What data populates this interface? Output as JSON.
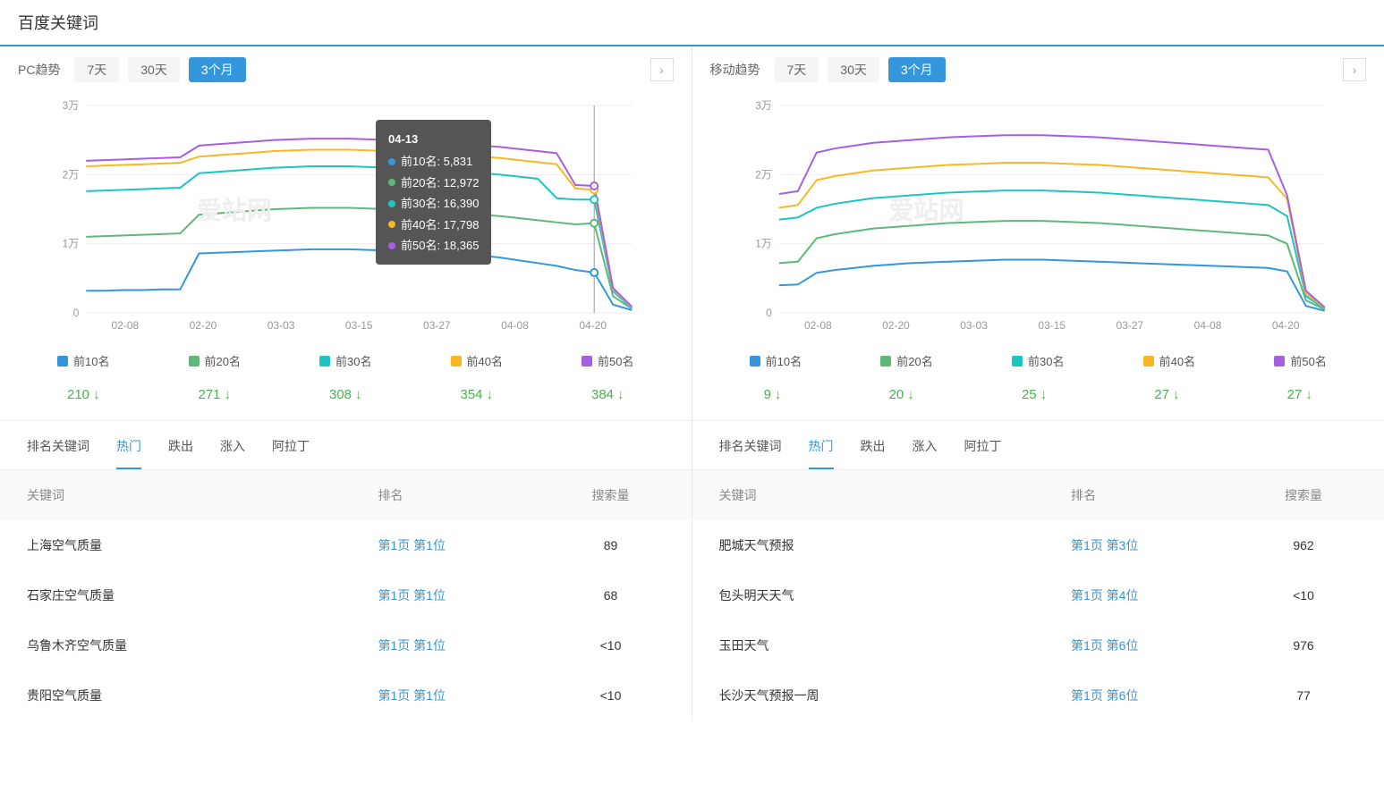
{
  "title": "百度关键词",
  "colors": {
    "accent": "#3497db",
    "green_delta": "#4bb04f",
    "grid": "#eeeeee",
    "axis_text": "#999999",
    "series": {
      "r10": "#3497db",
      "r20": "#5fb878",
      "r30": "#1cc4c4",
      "r40": "#f7b824",
      "r50": "#a65fe0"
    }
  },
  "watermark": "爱站网",
  "ranges": [
    "7天",
    "30天",
    "3个月"
  ],
  "pc": {
    "label": "PC趋势",
    "active_range": 2,
    "chart": {
      "type": "line",
      "ylim": [
        0,
        30000
      ],
      "yticks": [
        0,
        10000,
        20000,
        30000
      ],
      "ytick_labels": [
        "0",
        "1万",
        "2万",
        "3万"
      ],
      "xticks": [
        "02-08",
        "02-20",
        "03-03",
        "03-15",
        "03-27",
        "04-08",
        "04-20"
      ],
      "series": [
        {
          "name": "前10名",
          "color_key": "r10",
          "points": [
            3200,
            3200,
            3300,
            3300,
            3400,
            3400,
            8600,
            8700,
            8800,
            8900,
            9000,
            9100,
            9200,
            9200,
            9200,
            9100,
            9000,
            8900,
            8800,
            8700,
            8500,
            8300,
            8000,
            7600,
            7200,
            6800,
            6200,
            5831,
            1200,
            400
          ]
        },
        {
          "name": "前20名",
          "color_key": "r20",
          "points": [
            11000,
            11100,
            11200,
            11300,
            11400,
            11500,
            14200,
            14400,
            14600,
            14800,
            15000,
            15100,
            15200,
            15200,
            15200,
            15100,
            15000,
            14900,
            14800,
            14600,
            14400,
            14200,
            14000,
            13700,
            13400,
            13100,
            12800,
            12972,
            2400,
            600
          ]
        },
        {
          "name": "前30名",
          "color_key": "r30",
          "points": [
            17600,
            17700,
            17800,
            17900,
            18000,
            18100,
            20200,
            20400,
            20600,
            20800,
            21000,
            21100,
            21200,
            21200,
            21200,
            21100,
            21000,
            20900,
            20800,
            20600,
            20400,
            20200,
            20000,
            19700,
            19400,
            16600,
            16390,
            16390,
            3100,
            700
          ]
        },
        {
          "name": "前40名",
          "color_key": "r40",
          "points": [
            21200,
            21300,
            21400,
            21500,
            21600,
            21700,
            22600,
            22800,
            23000,
            23200,
            23400,
            23500,
            23600,
            23600,
            23600,
            23500,
            23400,
            23300,
            23200,
            23000,
            22800,
            22600,
            22400,
            22100,
            21800,
            21500,
            18000,
            17798,
            3400,
            800
          ]
        },
        {
          "name": "前50名",
          "color_key": "r50",
          "points": [
            22000,
            22100,
            22200,
            22300,
            22400,
            22500,
            24200,
            24400,
            24600,
            24800,
            25000,
            25100,
            25200,
            25200,
            25200,
            25100,
            25000,
            24900,
            24800,
            24600,
            24400,
            24200,
            24000,
            23700,
            23400,
            23100,
            18500,
            18365,
            3600,
            900
          ]
        }
      ],
      "tooltip": {
        "x_index": 27,
        "date": "04-13",
        "rows": [
          {
            "label": "前10名",
            "value": "5,831",
            "color_key": "r10"
          },
          {
            "label": "前20名",
            "value": "12,972",
            "color_key": "r20"
          },
          {
            "label": "前30名",
            "value": "16,390",
            "color_key": "r30"
          },
          {
            "label": "前40名",
            "value": "17,798",
            "color_key": "r40"
          },
          {
            "label": "前50名",
            "value": "18,365",
            "color_key": "r50"
          }
        ]
      }
    },
    "legend": [
      "前10名",
      "前20名",
      "前30名",
      "前40名",
      "前50名"
    ],
    "deltas": [
      "210",
      "271",
      "308",
      "354",
      "384"
    ],
    "tabs": [
      "排名关键词",
      "热门",
      "跌出",
      "涨入",
      "阿拉丁"
    ],
    "active_tab": 1,
    "table": {
      "headers": [
        "关键词",
        "排名",
        "搜索量"
      ],
      "rows": [
        {
          "kw": "上海空气质量",
          "rank": "第1页 第1位",
          "vol": "89"
        },
        {
          "kw": "石家庄空气质量",
          "rank": "第1页 第1位",
          "vol": "68"
        },
        {
          "kw": "乌鲁木齐空气质量",
          "rank": "第1页 第1位",
          "vol": "<10"
        },
        {
          "kw": "贵阳空气质量",
          "rank": "第1页 第1位",
          "vol": "<10"
        }
      ]
    }
  },
  "mobile": {
    "label": "移动趋势",
    "active_range": 2,
    "chart": {
      "type": "line",
      "ylim": [
        0,
        30000
      ],
      "yticks": [
        0,
        10000,
        20000,
        30000
      ],
      "ytick_labels": [
        "0",
        "1万",
        "2万",
        "3万"
      ],
      "xticks": [
        "02-08",
        "02-20",
        "03-03",
        "03-15",
        "03-27",
        "04-08",
        "04-20"
      ],
      "series": [
        {
          "name": "前10名",
          "color_key": "r10",
          "points": [
            4000,
            4100,
            5800,
            6200,
            6500,
            6800,
            7000,
            7200,
            7300,
            7400,
            7500,
            7600,
            7700,
            7700,
            7700,
            7600,
            7500,
            7400,
            7300,
            7200,
            7100,
            7000,
            6900,
            6800,
            6700,
            6600,
            6500,
            6000,
            1000,
            300
          ]
        },
        {
          "name": "前20名",
          "color_key": "r20",
          "points": [
            7200,
            7400,
            10800,
            11400,
            11800,
            12200,
            12400,
            12600,
            12800,
            13000,
            13100,
            13200,
            13300,
            13300,
            13300,
            13200,
            13100,
            13000,
            12800,
            12600,
            12400,
            12200,
            12000,
            11800,
            11600,
            11400,
            11200,
            10000,
            1800,
            500
          ]
        },
        {
          "name": "前30名",
          "color_key": "r30",
          "points": [
            13500,
            13800,
            15200,
            15800,
            16200,
            16600,
            16800,
            17000,
            17200,
            17400,
            17500,
            17600,
            17700,
            17700,
            17700,
            17600,
            17500,
            17400,
            17200,
            17000,
            16800,
            16600,
            16400,
            16200,
            16000,
            15800,
            15600,
            14000,
            2400,
            600
          ]
        },
        {
          "name": "前40名",
          "color_key": "r40",
          "points": [
            15200,
            15600,
            19200,
            19800,
            20200,
            20600,
            20800,
            21000,
            21200,
            21400,
            21500,
            21600,
            21700,
            21700,
            21700,
            21600,
            21500,
            21400,
            21200,
            21000,
            20800,
            20600,
            20400,
            20200,
            20000,
            19800,
            19600,
            16500,
            2800,
            700
          ]
        },
        {
          "name": "前50名",
          "color_key": "r50",
          "points": [
            17200,
            17600,
            23200,
            23800,
            24200,
            24600,
            24800,
            25000,
            25200,
            25400,
            25500,
            25600,
            25700,
            25700,
            25700,
            25600,
            25500,
            25400,
            25200,
            25000,
            24800,
            24600,
            24400,
            24200,
            24000,
            23800,
            23600,
            17000,
            3200,
            800
          ]
        }
      ]
    },
    "legend": [
      "前10名",
      "前20名",
      "前30名",
      "前40名",
      "前50名"
    ],
    "deltas": [
      "9",
      "20",
      "25",
      "27",
      "27"
    ],
    "tabs": [
      "排名关键词",
      "热门",
      "跌出",
      "涨入",
      "阿拉丁"
    ],
    "active_tab": 1,
    "table": {
      "headers": [
        "关键词",
        "排名",
        "搜索量"
      ],
      "rows": [
        {
          "kw": "肥城天气预报",
          "rank": "第1页 第3位",
          "vol": "962"
        },
        {
          "kw": "包头明天天气",
          "rank": "第1页 第4位",
          "vol": "<10"
        },
        {
          "kw": "玉田天气",
          "rank": "第1页 第6位",
          "vol": "976"
        },
        {
          "kw": "长沙天气预报一周",
          "rank": "第1页 第6位",
          "vol": "77"
        }
      ]
    }
  }
}
